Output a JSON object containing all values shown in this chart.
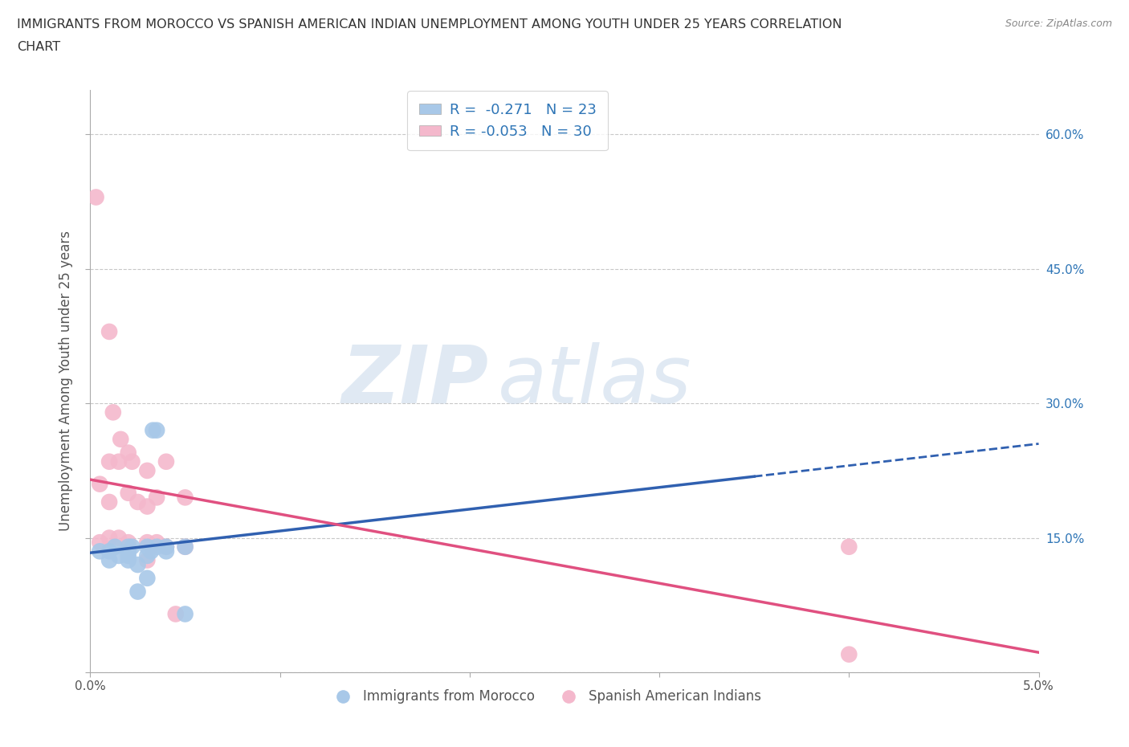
{
  "title": "IMMIGRANTS FROM MOROCCO VS SPANISH AMERICAN INDIAN UNEMPLOYMENT AMONG YOUTH UNDER 25 YEARS CORRELATION\nCHART",
  "source": "Source: ZipAtlas.com",
  "ylabel": "Unemployment Among Youth under 25 years",
  "xlim": [
    0.0,
    0.05
  ],
  "ylim": [
    0.0,
    0.65
  ],
  "grid_color": "#c8c8c8",
  "background_color": "#ffffff",
  "blue_color": "#a8c8e8",
  "pink_color": "#f4b8cc",
  "blue_line_color": "#3060b0",
  "pink_line_color": "#e05080",
  "blue_R": -0.271,
  "blue_N": 23,
  "pink_R": -0.053,
  "pink_N": 30,
  "legend_R_color": "#2e75b6",
  "watermark_zip": "ZIP",
  "watermark_atlas": "atlas",
  "blue_points": [
    [
      0.0005,
      0.135
    ],
    [
      0.001,
      0.135
    ],
    [
      0.001,
      0.125
    ],
    [
      0.0013,
      0.14
    ],
    [
      0.0015,
      0.13
    ],
    [
      0.002,
      0.14
    ],
    [
      0.002,
      0.13
    ],
    [
      0.002,
      0.135
    ],
    [
      0.002,
      0.125
    ],
    [
      0.0022,
      0.14
    ],
    [
      0.0025,
      0.12
    ],
    [
      0.003,
      0.14
    ],
    [
      0.003,
      0.105
    ],
    [
      0.003,
      0.13
    ],
    [
      0.0032,
      0.135
    ],
    [
      0.0033,
      0.27
    ],
    [
      0.0035,
      0.14
    ],
    [
      0.0035,
      0.27
    ],
    [
      0.004,
      0.135
    ],
    [
      0.004,
      0.14
    ],
    [
      0.005,
      0.14
    ],
    [
      0.0025,
      0.09
    ],
    [
      0.005,
      0.065
    ]
  ],
  "pink_points": [
    [
      0.0003,
      0.53
    ],
    [
      0.0005,
      0.21
    ],
    [
      0.001,
      0.38
    ],
    [
      0.001,
      0.235
    ],
    [
      0.001,
      0.19
    ],
    [
      0.0012,
      0.29
    ],
    [
      0.0015,
      0.235
    ],
    [
      0.0016,
      0.26
    ],
    [
      0.002,
      0.245
    ],
    [
      0.002,
      0.2
    ],
    [
      0.0022,
      0.235
    ],
    [
      0.0025,
      0.19
    ],
    [
      0.003,
      0.185
    ],
    [
      0.003,
      0.125
    ],
    [
      0.003,
      0.225
    ],
    [
      0.0032,
      0.14
    ],
    [
      0.0035,
      0.195
    ],
    [
      0.004,
      0.14
    ],
    [
      0.004,
      0.235
    ],
    [
      0.0045,
      0.065
    ],
    [
      0.005,
      0.195
    ],
    [
      0.005,
      0.14
    ],
    [
      0.0005,
      0.145
    ],
    [
      0.001,
      0.15
    ],
    [
      0.0015,
      0.15
    ],
    [
      0.002,
      0.145
    ],
    [
      0.003,
      0.145
    ],
    [
      0.0035,
      0.145
    ],
    [
      0.04,
      0.14
    ],
    [
      0.04,
      0.02
    ]
  ],
  "blue_line_x_solid_end": 0.035,
  "blue_line_x_end": 0.05,
  "pink_line_x_end": 0.05
}
